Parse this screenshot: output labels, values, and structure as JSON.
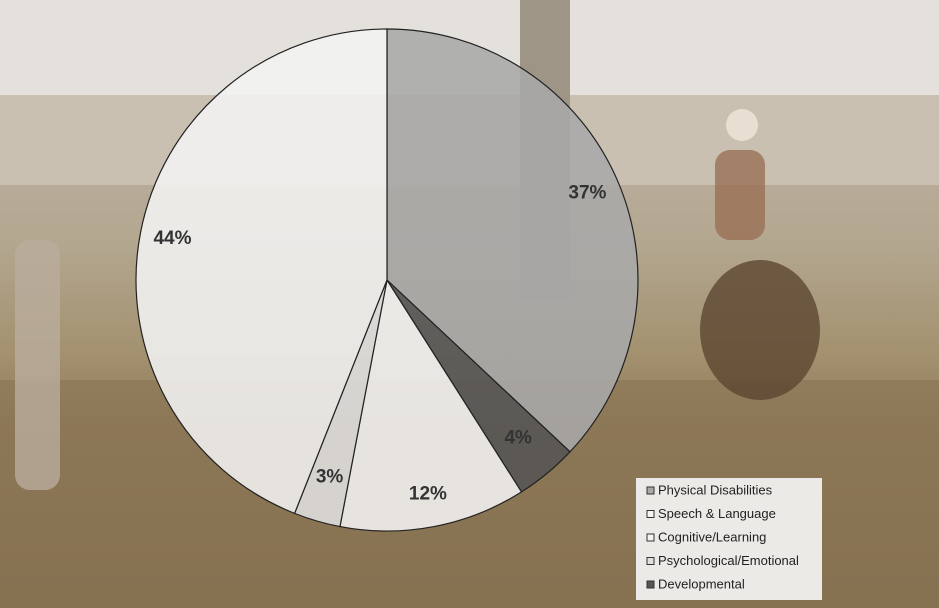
{
  "chart_data": {
    "type": "pie",
    "categories": [
      "Physical Disabilities",
      "Speech & Language",
      "Cognitive/Learning",
      "Psychological/Emotional",
      "Developmental"
    ],
    "values": [
      37,
      12,
      44,
      3,
      4
    ],
    "value_labels": [
      "37%",
      "12%",
      "44%",
      "3%",
      "4%"
    ],
    "colors": [
      "#a9a9a9",
      "#f4f4f4",
      "#f2f2f2",
      "#e0e0e0",
      "#555555"
    ],
    "slice_order": [
      0,
      4,
      1,
      3,
      2
    ],
    "legend": "bottom-right"
  }
}
